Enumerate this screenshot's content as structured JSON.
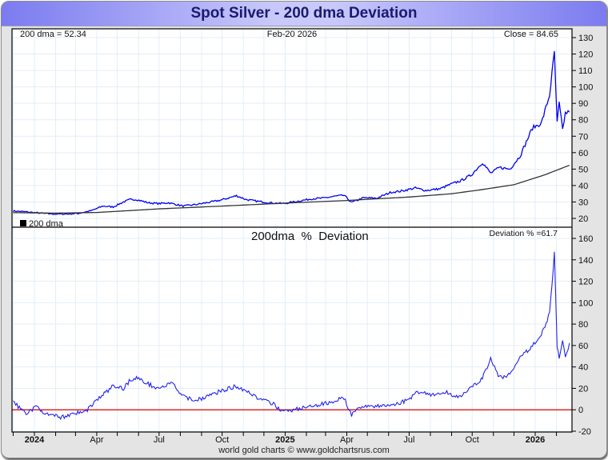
{
  "title": "Spot Silver - 200 dma Deviation",
  "footer": "world gold charts © www.goldchartsrus.com",
  "colors": {
    "price": "#0000ee",
    "dma": "#333333",
    "deviation": "#2222ee",
    "zero_line": "#dd0000",
    "grid": "#e3eef8"
  },
  "chart_data": [
    {
      "type": "line",
      "title": "",
      "header_left": "200 dma =  52.34",
      "header_center": "Feb-20  2026",
      "header_right": "Close = 84.65",
      "legend": [
        {
          "label": "200 dma",
          "marker": "black-square"
        }
      ],
      "legend_position": "bottom-left",
      "ylabel": "",
      "ylim": [
        18,
        133
      ],
      "yticks": [
        20,
        30,
        40,
        50,
        60,
        70,
        80,
        90,
        100,
        110,
        120,
        130
      ],
      "xlabel": "",
      "x_range": [
        "2023-12",
        "2026-02-20"
      ],
      "grid": true,
      "series": [
        {
          "name": "Spot Silver",
          "x": [
            "2023-12-01",
            "2023-12-20",
            "2024-01-15",
            "2024-02-01",
            "2024-02-20",
            "2024-03-05",
            "2024-03-25",
            "2024-04-10",
            "2024-04-25",
            "2024-05-10",
            "2024-05-20",
            "2024-05-29",
            "2024-06-15",
            "2024-07-01",
            "2024-07-15",
            "2024-08-05",
            "2024-08-25",
            "2024-09-15",
            "2024-09-30",
            "2024-10-22",
            "2024-11-05",
            "2024-11-20",
            "2024-12-10",
            "2024-12-30",
            "2025-01-20",
            "2025-02-10",
            "2025-02-25",
            "2025-03-15",
            "2025-03-28",
            "2025-04-08",
            "2025-04-25",
            "2025-05-15",
            "2025-06-05",
            "2025-06-18",
            "2025-07-10",
            "2025-07-25",
            "2025-08-15",
            "2025-09-01",
            "2025-09-15",
            "2025-09-30",
            "2025-10-16",
            "2025-10-28",
            "2025-11-10",
            "2025-11-25",
            "2025-12-10",
            "2025-12-28",
            "2026-01-10",
            "2026-01-22",
            "2026-01-29",
            "2026-02-02",
            "2026-02-05",
            "2026-02-10",
            "2026-02-14",
            "2026-02-20"
          ],
          "values": [
            24.5,
            24.0,
            23.0,
            22.6,
            22.7,
            23.0,
            24.8,
            27.5,
            27.0,
            30.0,
            31.5,
            31.5,
            29.5,
            29.0,
            29.5,
            27.5,
            28.5,
            30.0,
            31.2,
            33.8,
            31.5,
            30.5,
            29.5,
            29.0,
            30.5,
            32.0,
            32.3,
            33.5,
            34.0,
            29.7,
            32.5,
            32.3,
            36.0,
            36.5,
            38.5,
            37.0,
            38.0,
            41.0,
            43.0,
            46.5,
            54.0,
            47.5,
            51.0,
            50.0,
            58.0,
            75.0,
            78.0,
            95.0,
            121.0,
            78.0,
            90.0,
            74.0,
            84.0,
            84.65
          ]
        },
        {
          "name": "200 dma",
          "x": [
            "2023-12-01",
            "2024-02-01",
            "2024-04-01",
            "2024-07-01",
            "2024-10-01",
            "2025-01-01",
            "2025-04-01",
            "2025-07-01",
            "2025-09-01",
            "2025-10-15",
            "2025-12-01",
            "2026-01-15",
            "2026-02-20"
          ],
          "values": [
            23.5,
            23.2,
            23.6,
            25.8,
            27.5,
            29.3,
            30.9,
            33.0,
            35.0,
            37.5,
            40.5,
            46.5,
            52.34
          ]
        }
      ]
    },
    {
      "type": "line",
      "title": "200dma  %  Deviation",
      "header_right": "Deviation % =61.7",
      "ylabel": "",
      "ylim": [
        -20,
        160
      ],
      "yticks": [
        -20,
        0,
        20,
        40,
        60,
        80,
        100,
        120,
        140,
        160
      ],
      "xlabel": "",
      "xticks": [
        "2024",
        "Apr",
        "Jul",
        "Oct",
        "2025",
        "Apr",
        "Jul",
        "Oct",
        "2026"
      ],
      "xticks_bold": [
        true,
        false,
        false,
        false,
        true,
        false,
        false,
        false,
        true
      ],
      "grid": true,
      "reference_line": {
        "y": 0,
        "color": "red"
      },
      "series": [
        {
          "name": "200dma % Deviation",
          "x": [
            "2023-12-01",
            "2023-12-10",
            "2023-12-20",
            "2024-01-05",
            "2024-01-20",
            "2024-02-10",
            "2024-02-28",
            "2024-03-15",
            "2024-03-30",
            "2024-04-12",
            "2024-04-25",
            "2024-05-10",
            "2024-05-20",
            "2024-05-29",
            "2024-06-15",
            "2024-07-01",
            "2024-07-20",
            "2024-08-05",
            "2024-08-25",
            "2024-09-15",
            "2024-10-01",
            "2024-10-22",
            "2024-11-05",
            "2024-11-25",
            "2024-12-15",
            "2024-12-31",
            "2025-01-20",
            "2025-02-10",
            "2025-03-01",
            "2025-03-28",
            "2025-04-08",
            "2025-04-25",
            "2025-05-20",
            "2025-06-10",
            "2025-06-25",
            "2025-07-15",
            "2025-08-05",
            "2025-08-25",
            "2025-09-10",
            "2025-09-30",
            "2025-10-16",
            "2025-10-28",
            "2025-11-10",
            "2025-11-25",
            "2025-12-10",
            "2025-12-28",
            "2026-01-10",
            "2026-01-22",
            "2026-01-29",
            "2026-02-02",
            "2026-02-05",
            "2026-02-10",
            "2026-02-14",
            "2026-02-20"
          ],
          "values": [
            8,
            2,
            -3,
            3,
            -5,
            -7,
            -3,
            -2,
            8,
            15,
            22,
            20,
            28,
            30,
            24,
            20,
            25,
            12,
            9,
            14,
            18,
            22,
            18,
            10,
            5,
            -2,
            1,
            3,
            6,
            11,
            -5,
            4,
            3,
            5,
            8,
            17,
            14,
            16,
            12,
            20,
            30,
            47,
            30,
            33,
            48,
            60,
            70,
            90,
            146,
            60,
            46,
            65,
            48,
            61.7
          ]
        }
      ]
    }
  ]
}
